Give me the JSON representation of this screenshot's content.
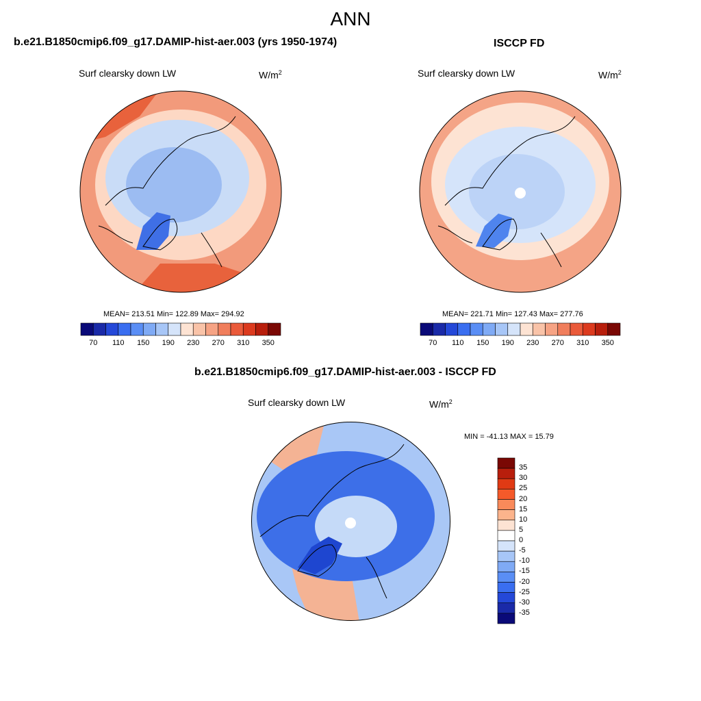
{
  "header": {
    "title": "ANN"
  },
  "panels": [
    {
      "title": "b.e21.B1850cmip6.f09_g17.DAMIP-hist-aer.003 (yrs 1950-1974)",
      "variable": "Surf clearsky down LW",
      "units_base": "W/m",
      "units_exp": "2",
      "stats": "MEAN= 213.51  Min= 122.89  Max= 294.92"
    },
    {
      "title": "ISCCP FD",
      "variable": "Surf clearsky down LW",
      "units_base": "W/m",
      "units_exp": "2",
      "stats": "MEAN= 221.71  Min= 127.43  Max= 277.76"
    },
    {
      "title": "b.e21.B1850cmip6.f09_g17.DAMIP-hist-aer.003 - ISCCP FD",
      "variable": "Surf clearsky down LW",
      "units_base": "W/m",
      "units_exp": "2",
      "stats": "MIN = -41.13 MAX =  15.79"
    }
  ],
  "abs_colorbar": {
    "colors": [
      "#0a0a78",
      "#1a2aa8",
      "#2448d8",
      "#3a6ef0",
      "#5a8ef5",
      "#7faaf5",
      "#a7c6f7",
      "#d5e4fa",
      "#fde3d3",
      "#f9c3a8",
      "#f6a384",
      "#f07e5c",
      "#ea5a3a",
      "#dc3a1e",
      "#b81e0c",
      "#7a0804"
    ],
    "labels": [
      "70",
      "110",
      "150",
      "190",
      "230",
      "270",
      "310",
      "350"
    ]
  },
  "diff_colorbar": {
    "colors": [
      "#7a0804",
      "#b81e0c",
      "#e03a14",
      "#f55a2a",
      "#f98a5a",
      "#fcb48c",
      "#fde3d3",
      "#ffffff",
      "#d5e4fa",
      "#a7c6f7",
      "#7faaf5",
      "#5a8ef5",
      "#3a6ef0",
      "#2448d8",
      "#1a2aa8",
      "#0a0a78"
    ],
    "labels": [
      "35",
      "30",
      "25",
      "20",
      "15",
      "10",
      "5",
      "0",
      "-5",
      "-10",
      "-15",
      "-20",
      "-25",
      "-30",
      "-35"
    ]
  },
  "maps": {
    "map1": {
      "outer": "#f29a7b",
      "ring": "#fdd8c4",
      "inner": "#c9dcf7",
      "core": "#9cbcf2",
      "greenland": "#3f6fe6",
      "accent": "#e8623c"
    },
    "map2": {
      "outer": "#f4a486",
      "ring": "#fde3d3",
      "inner": "#d5e4fa",
      "core": "#bcd3f7",
      "greenland": "#4f84ee",
      "accent": "#f08a66",
      "pole": "#ffffff"
    },
    "diff": {
      "outer": "#a9c7f6",
      "mid": "#3d6fe8",
      "inner": "#c5daf8",
      "pole": "#ffffff",
      "warm": "#f4b394",
      "dark": "#1e46d0"
    }
  }
}
